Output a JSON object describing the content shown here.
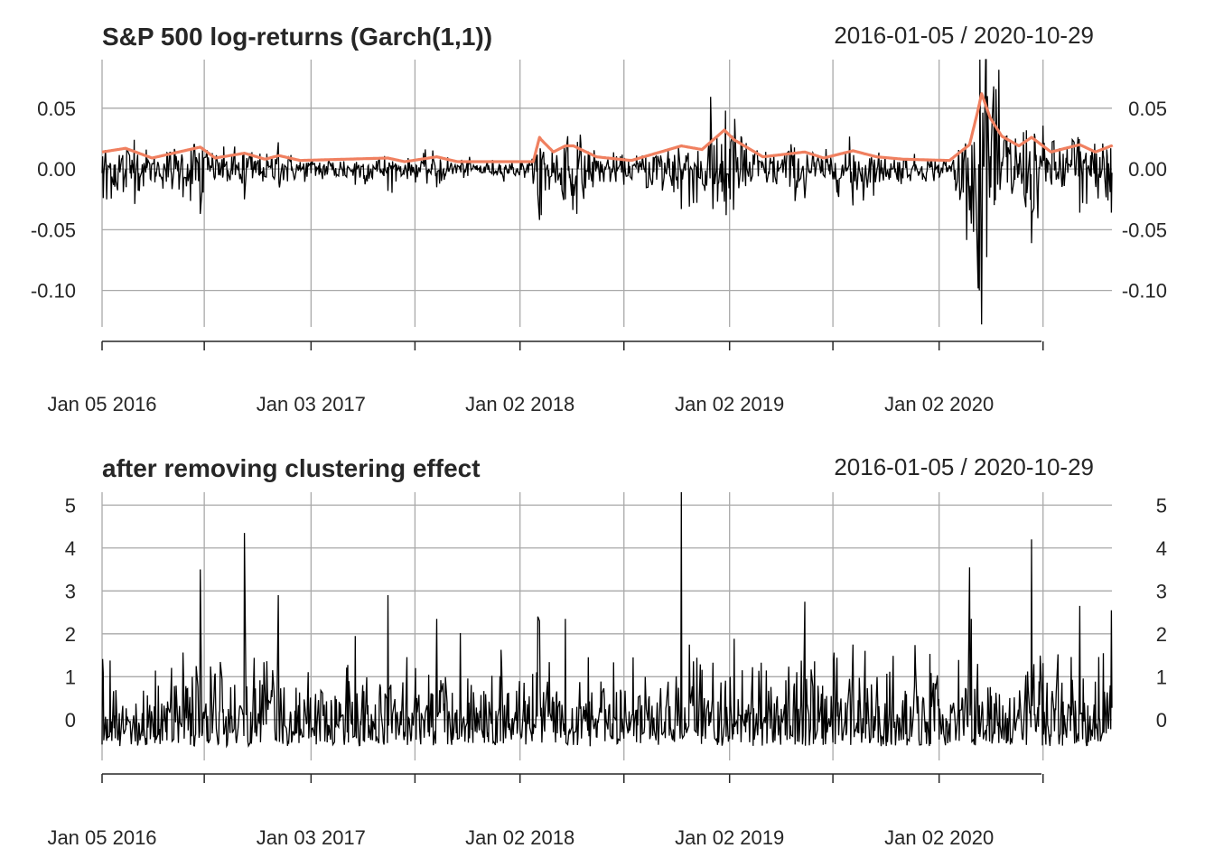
{
  "chart_data": [
    {
      "type": "line",
      "title": "S&P 500 log-returns (Garch(1,1))",
      "date_range": "2016-01-05 / 2020-10-29",
      "x": {
        "start": "2016-01-05",
        "end": "2020-10-29",
        "tick_labels": [
          "Jan 05 2016",
          "Jan 03 2017",
          "Jan 02 2018",
          "Jan 02 2019",
          "Jan 02 2020"
        ],
        "grid_dates": [
          "2016-01-05",
          "2016-07-01",
          "2017-01-03",
          "2017-07-03",
          "2018-01-02",
          "2018-07-02",
          "2019-01-02",
          "2019-07-01",
          "2020-01-02",
          "2020-07-01"
        ]
      },
      "ylim": [
        -0.13,
        0.09
      ],
      "y_ticks": [
        0.05,
        0.0,
        -0.05,
        -0.1
      ],
      "y_tick_labels": [
        "0.05",
        "0.00",
        "-0.05",
        "-0.10"
      ],
      "grid": true,
      "series": [
        {
          "color": "#000000",
          "kind": "returns",
          "vol_anchors": [
            [
              "2016-01-05",
              0.012
            ],
            [
              "2016-02-15",
              0.015
            ],
            [
              "2016-04-01",
              0.007
            ],
            [
              "2016-06-24",
              0.016
            ],
            [
              "2016-07-20",
              0.007
            ],
            [
              "2016-09-09",
              0.011
            ],
            [
              "2016-10-15",
              0.006
            ],
            [
              "2016-11-08",
              0.009
            ],
            [
              "2016-12-15",
              0.005
            ],
            [
              "2017-05-17",
              0.007
            ],
            [
              "2017-06-15",
              0.004
            ],
            [
              "2017-08-10",
              0.008
            ],
            [
              "2017-09-15",
              0.004
            ],
            [
              "2018-01-25",
              0.004
            ],
            [
              "2018-02-05",
              0.024
            ],
            [
              "2018-02-08",
              0.022
            ],
            [
              "2018-03-01",
              0.012
            ],
            [
              "2018-03-22",
              0.017
            ],
            [
              "2018-04-05",
              0.017
            ],
            [
              "2018-05-15",
              0.008
            ],
            [
              "2018-07-15",
              0.005
            ],
            [
              "2018-10-10",
              0.017
            ],
            [
              "2018-11-15",
              0.014
            ],
            [
              "2018-12-24",
              0.03
            ],
            [
              "2019-01-10",
              0.022
            ],
            [
              "2019-03-01",
              0.008
            ],
            [
              "2019-05-13",
              0.012
            ],
            [
              "2019-06-15",
              0.007
            ],
            [
              "2019-08-05",
              0.013
            ],
            [
              "2019-09-15",
              0.008
            ],
            [
              "2019-11-01",
              0.006
            ],
            [
              "2020-01-20",
              0.005
            ],
            [
              "2020-02-24",
              0.018
            ],
            [
              "2020-03-09",
              0.045
            ],
            [
              "2020-03-16",
              0.06
            ],
            [
              "2020-03-31",
              0.04
            ],
            [
              "2020-04-20",
              0.025
            ],
            [
              "2020-05-20",
              0.017
            ],
            [
              "2020-06-11",
              0.024
            ],
            [
              "2020-07-15",
              0.012
            ],
            [
              "2020-09-03",
              0.018
            ],
            [
              "2020-09-30",
              0.012
            ],
            [
              "2020-10-28",
              0.017
            ],
            [
              "2020-10-29",
              0.016
            ]
          ],
          "spikes": [
            [
              "2016-01-07",
              -0.024
            ],
            [
              "2016-01-13",
              -0.025
            ],
            [
              "2016-02-11",
              -0.019
            ],
            [
              "2016-03-01",
              0.024
            ],
            [
              "2016-06-24",
              -0.037
            ],
            [
              "2016-06-27",
              -0.018
            ],
            [
              "2016-06-28",
              0.018
            ],
            [
              "2016-09-09",
              -0.025
            ],
            [
              "2016-11-07",
              0.022
            ],
            [
              "2017-03-21",
              -0.013
            ],
            [
              "2017-05-17",
              -0.018
            ],
            [
              "2017-08-10",
              -0.015
            ],
            [
              "2018-02-02",
              -0.021
            ],
            [
              "2018-02-05",
              -0.042
            ],
            [
              "2018-02-08",
              -0.038
            ],
            [
              "2018-02-06",
              0.017
            ],
            [
              "2018-03-22",
              -0.025
            ],
            [
              "2018-03-26",
              0.027
            ],
            [
              "2018-04-02",
              -0.022
            ],
            [
              "2018-04-06",
              -0.022
            ],
            [
              "2018-10-10",
              -0.033
            ],
            [
              "2018-10-24",
              -0.031
            ],
            [
              "2018-11-20",
              -0.018
            ],
            [
              "2018-12-04",
              -0.033
            ],
            [
              "2018-12-24",
              -0.027
            ],
            [
              "2018-12-26",
              0.048
            ],
            [
              "2019-01-03",
              -0.025
            ],
            [
              "2019-05-13",
              -0.024
            ],
            [
              "2019-08-05",
              -0.03
            ],
            [
              "2019-08-23",
              -0.026
            ],
            [
              "2020-01-31",
              -0.018
            ],
            [
              "2020-02-24",
              -0.034
            ],
            [
              "2020-02-27",
              -0.045
            ],
            [
              "2020-03-09",
              -0.08
            ],
            [
              "2020-03-12",
              -0.1
            ],
            [
              "2020-03-16",
              -0.128
            ],
            [
              "2020-03-13",
              0.09
            ],
            [
              "2020-03-24",
              0.09
            ],
            [
              "2020-03-26",
              0.06
            ],
            [
              "2020-04-06",
              0.068
            ],
            [
              "2020-06-11",
              -0.061
            ],
            [
              "2020-09-03",
              -0.036
            ],
            [
              "2020-09-08",
              -0.028
            ],
            [
              "2020-10-26",
              -0.019
            ],
            [
              "2020-10-28",
              -0.036
            ]
          ]
        },
        {
          "color": "#f08060",
          "kind": "conditional_sd",
          "vol_anchors_ref": "same as returns vol_anchors"
        }
      ]
    },
    {
      "type": "line",
      "title": "after removing clustering effect",
      "date_range": "2016-01-05 / 2020-10-29",
      "x": {
        "start": "2016-01-05",
        "end": "2020-10-29",
        "tick_labels": [
          "Jan 05 2016",
          "Jan 03 2017",
          "Jan 02 2018",
          "Jan 02 2019",
          "Jan 02 2020"
        ]
      },
      "ylim": [
        -0.95,
        5.3
      ],
      "y_ticks": [
        5,
        4,
        3,
        2,
        1,
        0
      ],
      "y_tick_labels": [
        "5",
        "4",
        "3",
        "2",
        "1",
        "0"
      ],
      "grid": true,
      "series": [
        {
          "color": "#000000",
          "kind": "standardized_abs_residuals",
          "spikes": [
            [
              "2016-01-07",
              1.1
            ],
            [
              "2016-06-24",
              3.5
            ],
            [
              "2016-09-09",
              4.35
            ],
            [
              "2016-11-07",
              2.9
            ],
            [
              "2017-03-21",
              1.95
            ],
            [
              "2017-05-17",
              2.9
            ],
            [
              "2017-08-10",
              2.35
            ],
            [
              "2018-02-02",
              2.4
            ],
            [
              "2018-02-05",
              2.3
            ],
            [
              "2018-03-22",
              2.35
            ],
            [
              "2018-10-10",
              5.3
            ],
            [
              "2018-10-24",
              1.75
            ],
            [
              "2019-01-03",
              1.0
            ],
            [
              "2019-05-13",
              2.75
            ],
            [
              "2019-08-05",
              1.75
            ],
            [
              "2020-02-24",
              3.55
            ],
            [
              "2020-06-11",
              4.2
            ],
            [
              "2020-09-03",
              2.65
            ],
            [
              "2020-10-28",
              2.55
            ],
            [
              "2020-03-09",
              1.3
            ],
            [
              "2020-02-27",
              2.35
            ]
          ]
        }
      ]
    }
  ]
}
